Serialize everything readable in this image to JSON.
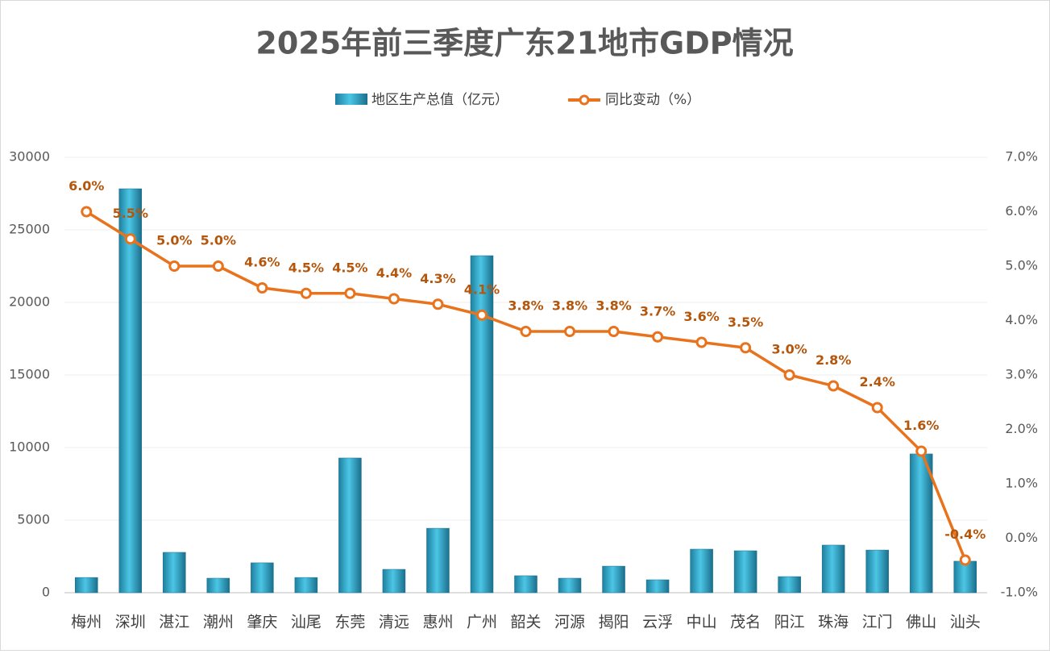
{
  "chart_data": {
    "type": "bar-line",
    "title": "2025年前三季度广东21地市GDP情况",
    "categories": [
      "梅州",
      "深圳",
      "湛江",
      "潮州",
      "肇庆",
      "汕尾",
      "东莞",
      "清远",
      "惠州",
      "广州",
      "韶关",
      "河源",
      "揭阳",
      "云浮",
      "中山",
      "茂名",
      "阳江",
      "珠海",
      "江门",
      "佛山",
      "汕头"
    ],
    "series": [
      {
        "name": "地区生产总值（亿元）",
        "type": "bar",
        "color": "#2fa6c8",
        "values": [
          1050,
          27830,
          2780,
          1000,
          2060,
          1050,
          9280,
          1610,
          4440,
          23220,
          1170,
          1000,
          1830,
          890,
          3000,
          2890,
          1110,
          3280,
          2940,
          9560,
          2170
        ]
      },
      {
        "name": "同比变动（%）",
        "type": "line",
        "axis": "y2",
        "color": "#e8731c",
        "values": [
          6.0,
          5.5,
          5.0,
          5.0,
          4.6,
          4.5,
          4.5,
          4.4,
          4.3,
          4.1,
          3.8,
          3.8,
          3.8,
          3.7,
          3.6,
          3.5,
          3.0,
          2.8,
          2.4,
          1.6,
          -0.4
        ],
        "value_labels": [
          "6.0%",
          "5.5%",
          "5.0%",
          "5.0%",
          "4.6%",
          "4.5%",
          "4.5%",
          "4.4%",
          "4.3%",
          "4.1%",
          "3.8%",
          "3.8%",
          "3.8%",
          "3.7%",
          "3.6%",
          "3.5%",
          "3.0%",
          "2.8%",
          "2.4%",
          "1.6%",
          "-0.4%"
        ]
      }
    ],
    "ylim": [
      0,
      30000
    ],
    "yticks": [
      0,
      5000,
      10000,
      15000,
      20000,
      25000,
      30000
    ],
    "y2lim": [
      -1.0,
      7.0
    ],
    "y2ticks": [
      {
        "value": -1.0,
        "label": "-1.0%"
      },
      {
        "value": 0.0,
        "label": "0.0%"
      },
      {
        "value": 1.0,
        "label": "1.0%"
      },
      {
        "value": 2.0,
        "label": "2.0%"
      },
      {
        "value": 3.0,
        "label": "3.0%"
      },
      {
        "value": 4.0,
        "label": "4.0%"
      },
      {
        "value": 5.0,
        "label": "5.0%"
      },
      {
        "value": 6.0,
        "label": "6.0%"
      },
      {
        "value": 7.0,
        "label": "7.0%"
      }
    ],
    "grid": true
  }
}
